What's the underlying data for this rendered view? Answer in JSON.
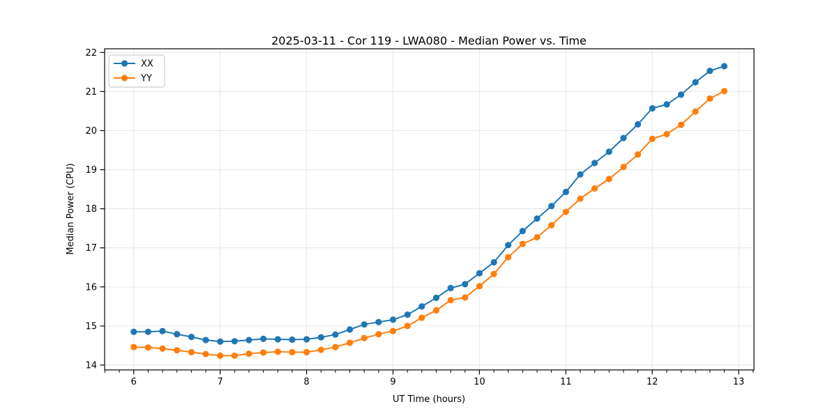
{
  "chart_data": {
    "type": "line",
    "title": "2025-03-11 - Cor 119 - LWA080 - Median Power vs. Time",
    "xlabel": "UT Time (hours)",
    "ylabel": "Median Power (CPU)",
    "xlim": [
      5.663,
      13.177
    ],
    "ylim": [
      13.875,
      22.095
    ],
    "xticks": [
      6,
      7,
      8,
      9,
      10,
      11,
      12,
      13
    ],
    "yticks": [
      14,
      15,
      16,
      17,
      18,
      19,
      20,
      21,
      22
    ],
    "minor_tick_step_x": 0.16667,
    "grid": true,
    "grid_color": "#e6e6e6",
    "spine_color": "#000000",
    "legend_position": "upper-left",
    "x": [
      6.0,
      6.167,
      6.333,
      6.5,
      6.667,
      6.833,
      7.0,
      7.167,
      7.333,
      7.5,
      7.667,
      7.833,
      8.0,
      8.167,
      8.333,
      8.5,
      8.667,
      8.833,
      9.0,
      9.167,
      9.333,
      9.5,
      9.667,
      9.833,
      10.0,
      10.167,
      10.333,
      10.5,
      10.667,
      10.833,
      11.0,
      11.167,
      11.333,
      11.5,
      11.667,
      11.833,
      12.0,
      12.167,
      12.333,
      12.5,
      12.667,
      12.833
    ],
    "series": [
      {
        "name": "XX",
        "color": "#1f77b4",
        "values": [
          14.85,
          14.85,
          14.87,
          14.79,
          14.72,
          14.64,
          14.6,
          14.61,
          14.64,
          14.67,
          14.66,
          14.65,
          14.66,
          14.71,
          14.78,
          14.91,
          15.04,
          15.1,
          15.16,
          15.29,
          15.5,
          15.72,
          15.97,
          16.07,
          16.35,
          16.63,
          17.07,
          17.43,
          17.75,
          18.07,
          18.43,
          18.88,
          19.17,
          19.46,
          19.81,
          20.16,
          20.57,
          20.67,
          20.92,
          21.24,
          21.53,
          21.65
        ]
      },
      {
        "name": "YY",
        "color": "#ff7f0e",
        "values": [
          14.46,
          14.45,
          14.42,
          14.38,
          14.33,
          14.28,
          14.24,
          14.24,
          14.29,
          14.32,
          14.34,
          14.33,
          14.33,
          14.39,
          14.46,
          14.57,
          14.69,
          14.79,
          14.87,
          15.0,
          15.21,
          15.4,
          15.66,
          15.73,
          16.02,
          16.33,
          16.76,
          17.1,
          17.27,
          17.58,
          17.92,
          18.26,
          18.52,
          18.76,
          19.07,
          19.39,
          19.79,
          19.91,
          20.15,
          20.49,
          20.82,
          21.01
        ]
      }
    ]
  }
}
